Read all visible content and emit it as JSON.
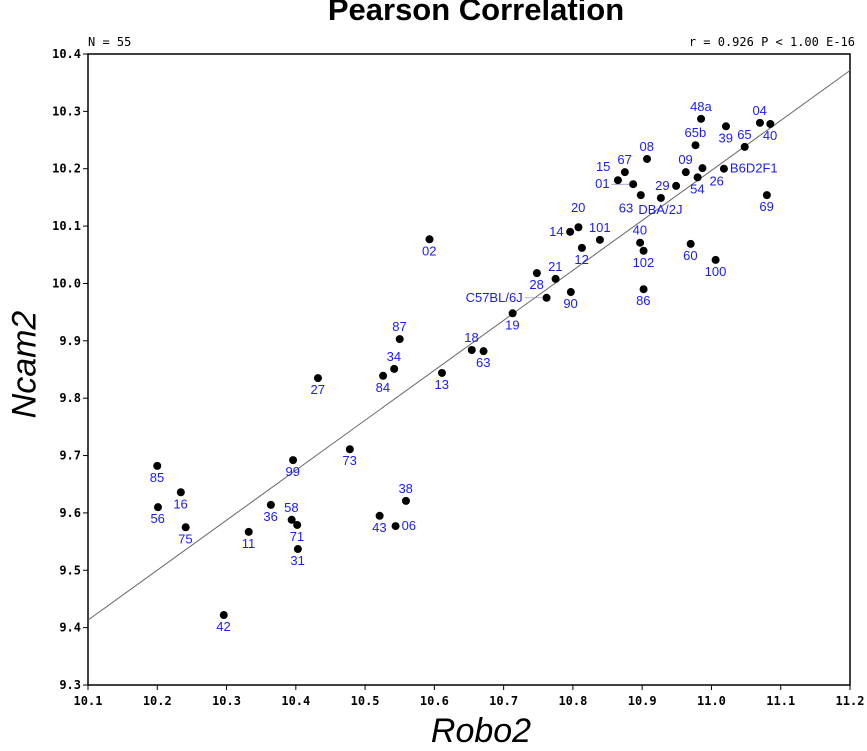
{
  "chart_data": {
    "type": "scatter",
    "title": "Pearson Correlation",
    "n_label": "N = 55",
    "stats_label": "r = 0.926 P < 1.00 E-16",
    "xlabel": "Robo2",
    "ylabel": "Ncam2",
    "xlim": [
      10.1,
      11.2
    ],
    "ylim": [
      9.3,
      10.4
    ],
    "xticks": [
      "10.1",
      "10.2",
      "10.3",
      "10.4",
      "10.5",
      "10.6",
      "10.7",
      "10.8",
      "10.9",
      "11.0",
      "11.1",
      "11.2"
    ],
    "yticks": [
      "9.3",
      "9.4",
      "9.5",
      "9.6",
      "9.7",
      "9.8",
      "9.9",
      "10.0",
      "10.1",
      "10.2",
      "10.3",
      "10.4"
    ],
    "grid": false,
    "regression_line": {
      "slope": 0.871,
      "intercept": 0.616
    },
    "point_color": "#000000",
    "label_color": "#1a1aff",
    "points": [
      {
        "label": "85",
        "x": 10.2,
        "y": 9.682
      },
      {
        "label": "56",
        "x": 10.201,
        "y": 9.61
      },
      {
        "label": "16",
        "x": 10.234,
        "y": 9.636
      },
      {
        "label": "75",
        "x": 10.241,
        "y": 9.575
      },
      {
        "label": "42",
        "x": 10.296,
        "y": 9.422
      },
      {
        "label": "11",
        "x": 10.332,
        "y": 9.567
      },
      {
        "label": "36",
        "x": 10.364,
        "y": 9.614
      },
      {
        "label": "99",
        "x": 10.396,
        "y": 9.692
      },
      {
        "label": "58",
        "x": 10.394,
        "y": 9.588
      },
      {
        "label": "71",
        "x": 10.402,
        "y": 9.579
      },
      {
        "label": "31",
        "x": 10.403,
        "y": 9.537
      },
      {
        "label": "27",
        "x": 10.432,
        "y": 9.835
      },
      {
        "label": "73",
        "x": 10.478,
        "y": 9.711
      },
      {
        "label": "02",
        "x": 10.593,
        "y": 10.077
      },
      {
        "label": "84",
        "x": 10.526,
        "y": 9.839
      },
      {
        "label": "34",
        "x": 10.542,
        "y": 9.851
      },
      {
        "label": "87",
        "x": 10.55,
        "y": 9.903
      },
      {
        "label": "43",
        "x": 10.521,
        "y": 9.595
      },
      {
        "label": "06",
        "x": 10.544,
        "y": 9.577
      },
      {
        "label": "38",
        "x": 10.559,
        "y": 9.621
      },
      {
        "label": "13",
        "x": 10.611,
        "y": 9.844
      },
      {
        "label": "18",
        "x": 10.654,
        "y": 9.884
      },
      {
        "label": "63",
        "x": 10.671,
        "y": 9.882
      },
      {
        "label": "19",
        "x": 10.713,
        "y": 9.948
      },
      {
        "label": "C57BL/6J",
        "x": 10.762,
        "y": 9.975
      },
      {
        "label": "28",
        "x": 10.748,
        "y": 10.018
      },
      {
        "label": "21",
        "x": 10.775,
        "y": 10.008
      },
      {
        "label": "90",
        "x": 10.797,
        "y": 9.985
      },
      {
        "label": "14",
        "x": 10.796,
        "y": 10.09
      },
      {
        "label": "20",
        "x": 10.808,
        "y": 10.098
      },
      {
        "label": "12",
        "x": 10.813,
        "y": 10.062
      },
      {
        "label": "101",
        "x": 10.839,
        "y": 10.076
      },
      {
        "label": "40",
        "x": 10.897,
        "y": 10.071
      },
      {
        "label": "102",
        "x": 10.902,
        "y": 10.057
      },
      {
        "label": "86",
        "x": 10.902,
        "y": 9.99
      },
      {
        "label": "60",
        "x": 10.97,
        "y": 10.069
      },
      {
        "label": "100",
        "x": 11.006,
        "y": 10.041
      },
      {
        "label": "15",
        "x": 10.865,
        "y": 10.18
      },
      {
        "label": "67",
        "x": 10.875,
        "y": 10.194
      },
      {
        "label": "01",
        "x": 10.887,
        "y": 10.173
      },
      {
        "label": "63",
        "x": 10.898,
        "y": 10.154
      },
      {
        "label": "08",
        "x": 10.907,
        "y": 10.217
      },
      {
        "label": "DBA/2J",
        "x": 10.927,
        "y": 10.149
      },
      {
        "label": "29",
        "x": 10.949,
        "y": 10.17
      },
      {
        "label": "09",
        "x": 10.963,
        "y": 10.194
      },
      {
        "label": "54",
        "x": 10.98,
        "y": 10.185
      },
      {
        "label": "26",
        "x": 10.987,
        "y": 10.201
      },
      {
        "label": "B6D2F1",
        "x": 11.018,
        "y": 10.2
      },
      {
        "label": "65b",
        "x": 10.977,
        "y": 10.241
      },
      {
        "label": "48a",
        "x": 10.985,
        "y": 10.287
      },
      {
        "label": "39",
        "x": 11.021,
        "y": 10.274
      },
      {
        "label": "65",
        "x": 11.048,
        "y": 10.238
      },
      {
        "label": "04",
        "x": 11.07,
        "y": 10.28
      },
      {
        "label": "40",
        "x": 11.085,
        "y": 10.278
      },
      {
        "label": "69",
        "x": 11.08,
        "y": 10.154
      }
    ]
  }
}
